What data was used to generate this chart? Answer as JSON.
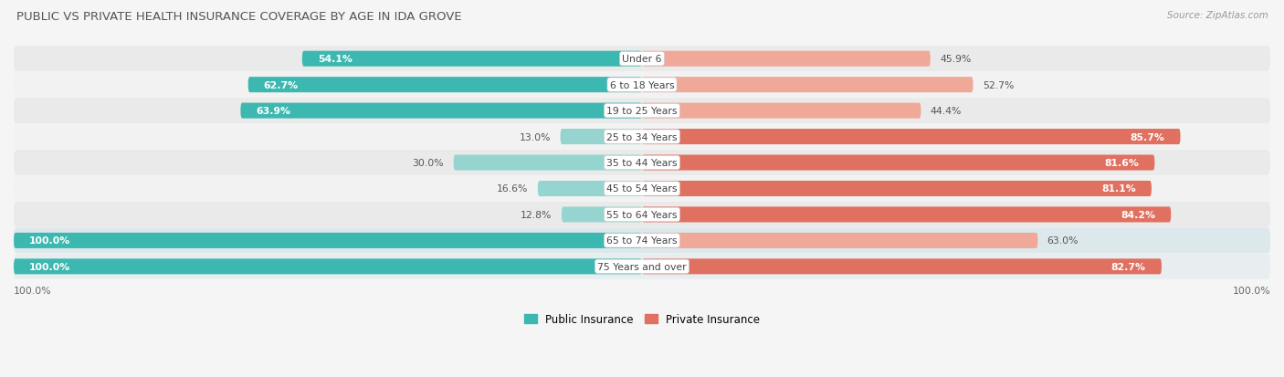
{
  "title": "PUBLIC VS PRIVATE HEALTH INSURANCE COVERAGE BY AGE IN IDA GROVE",
  "source": "Source: ZipAtlas.com",
  "categories": [
    "Under 6",
    "6 to 18 Years",
    "19 to 25 Years",
    "25 to 34 Years",
    "35 to 44 Years",
    "45 to 54 Years",
    "55 to 64 Years",
    "65 to 74 Years",
    "75 Years and over"
  ],
  "public_values": [
    54.1,
    62.7,
    63.9,
    13.0,
    30.0,
    16.6,
    12.8,
    100.0,
    100.0
  ],
  "private_values": [
    45.9,
    52.7,
    44.4,
    85.7,
    81.6,
    81.1,
    84.2,
    63.0,
    82.7
  ],
  "public_color_strong": "#3db8b0",
  "public_color_light": "#96d4d0",
  "private_color_strong": "#e07060",
  "private_color_light": "#f0a898",
  "row_bg_colors": [
    "#eaeaea",
    "#f2f2f2",
    "#eaeaea",
    "#f2f2f2",
    "#eaeaea",
    "#f2f2f2",
    "#eaeaea",
    "#dde8ec",
    "#e8eef0"
  ],
  "bg_color": "#f5f5f5",
  "max_val": 100.0,
  "legend_labels": [
    "Public Insurance",
    "Private Insurance"
  ],
  "bottom_left_label": "100.0%",
  "bottom_right_label": "100.0%",
  "title_color": "#555555",
  "source_color": "#999999",
  "pub_strong_threshold": 50.0,
  "priv_strong_threshold": 70.0
}
